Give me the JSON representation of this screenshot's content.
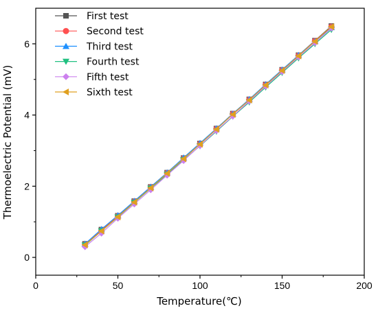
{
  "chart_data": {
    "type": "line",
    "xlabel": "Temperature(℃)",
    "ylabel": "Thermoelectric Potential (mV)",
    "xlim": [
      0,
      200
    ],
    "ylim": [
      -0.5,
      7.0
    ],
    "xticks": [
      0,
      50,
      100,
      150,
      200
    ],
    "yticks": [
      0,
      2,
      4,
      6
    ],
    "grid": false,
    "legend_position": "top-left",
    "x": [
      30,
      40,
      50,
      60,
      70,
      80,
      90,
      100,
      110,
      120,
      130,
      140,
      150,
      160,
      170,
      180
    ],
    "series": [
      {
        "name": "First test",
        "color": "#555555",
        "marker": "square",
        "values": [
          0.38,
          0.78,
          1.17,
          1.58,
          1.98,
          2.38,
          2.79,
          3.2,
          3.62,
          4.04,
          4.44,
          4.86,
          5.27,
          5.68,
          6.09,
          6.5
        ]
      },
      {
        "name": "Second test",
        "color": "#ff5050",
        "marker": "circle",
        "values": [
          0.36,
          0.76,
          1.16,
          1.57,
          1.97,
          2.37,
          2.78,
          3.19,
          3.61,
          4.03,
          4.43,
          4.85,
          5.26,
          5.67,
          6.08,
          6.48
        ]
      },
      {
        "name": "Third test",
        "color": "#1e90ff",
        "marker": "triangle-up",
        "values": [
          0.38,
          0.79,
          1.18,
          1.58,
          1.98,
          2.38,
          2.8,
          3.21,
          3.62,
          4.03,
          4.44,
          4.86,
          5.27,
          5.68,
          6.07,
          6.46
        ]
      },
      {
        "name": "Fourth test",
        "color": "#20c080",
        "marker": "triangle-down",
        "values": [
          0.34,
          0.74,
          1.13,
          1.54,
          1.94,
          2.33,
          2.74,
          3.13,
          3.54,
          3.96,
          4.36,
          4.78,
          5.19,
          5.6,
          6.0,
          6.4
        ]
      },
      {
        "name": "Fifth test",
        "color": "#cc80ee",
        "marker": "diamond",
        "values": [
          0.3,
          0.68,
          1.1,
          1.5,
          1.9,
          2.31,
          2.72,
          3.14,
          3.56,
          3.97,
          4.39,
          4.81,
          5.22,
          5.63,
          6.03,
          6.44
        ]
      },
      {
        "name": "Sixth test",
        "color": "#e0a020",
        "marker": "triangle-left",
        "values": [
          0.35,
          0.74,
          1.14,
          1.55,
          1.95,
          2.36,
          2.77,
          3.18,
          3.6,
          4.02,
          4.42,
          4.84,
          5.25,
          5.66,
          6.07,
          6.48
        ]
      }
    ]
  }
}
